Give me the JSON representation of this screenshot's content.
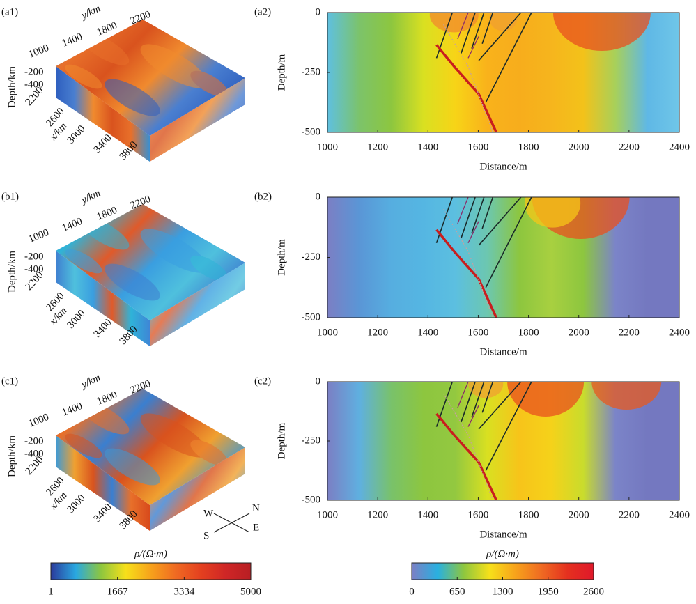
{
  "chart_data": [
    {
      "type": "block3d",
      "label": "(a1)",
      "y_label": "y/km",
      "yticks": [
        1000,
        1400,
        1800,
        2200
      ],
      "z_label": "Depth/km",
      "zticks": [
        -200,
        -400
      ],
      "x_label": "x/km",
      "xticks": [
        2200,
        2600,
        3000,
        3400,
        3800
      ],
      "colors": [
        "#3a8fd0",
        "#e8702a",
        "#d9531e",
        "#f08a2e",
        "#4a7fd0",
        "#2e5fbf"
      ]
    },
    {
      "type": "block3d",
      "label": "(b1)",
      "y_label": "y/km",
      "yticks": [
        1000,
        1400,
        1800,
        2200
      ],
      "z_label": "Depth/km",
      "zticks": [
        -200,
        -400
      ],
      "x_label": "x/km",
      "xticks": [
        2200,
        2600,
        3000,
        3400,
        3800
      ],
      "colors": [
        "#3f86d6",
        "#2fb3d8",
        "#e05a2a",
        "#3a9ee0",
        "#4fc0dd",
        "#3f7fd0"
      ]
    },
    {
      "type": "block3d",
      "label": "(c1)",
      "y_label": "y/km",
      "yticks": [
        1000,
        1400,
        1800,
        2200
      ],
      "z_label": "Depth/km",
      "zticks": [
        -200,
        -400
      ],
      "x_label": "x/km",
      "xticks": [
        2200,
        2600,
        3000,
        3400,
        3800
      ],
      "colors": [
        "#d84a1c",
        "#e8702a",
        "#3a7fd0",
        "#d9531e",
        "#f0a030",
        "#3c9ad8"
      ]
    },
    {
      "type": "section",
      "label": "(a2)",
      "xlabel": "Distance/m",
      "ylabel": "Depth/m",
      "xlim": [
        1000,
        2400
      ],
      "ylim": [
        -500,
        0
      ],
      "xticks": [
        1000,
        1200,
        1400,
        1600,
        1800,
        2000,
        2200,
        2400
      ],
      "yticks": [
        0,
        -250,
        -500
      ],
      "colors": [
        "#5fc0e0",
        "#7cc36a",
        "#8dc63f",
        "#d9e021",
        "#f7d417",
        "#f9b21b",
        "#f7ad1c",
        "#f6b51d",
        "#f3c21a",
        "#a8d05a",
        "#5fb8e6",
        "#6fc6e8"
      ]
    },
    {
      "type": "section",
      "label": "(b2)",
      "xlabel": "Distance/m",
      "ylabel": "Depth/m",
      "xlim": [
        1000,
        2400
      ],
      "ylim": [
        -500,
        0
      ],
      "xticks": [
        1000,
        1200,
        1400,
        1600,
        1800,
        2000,
        2200,
        2400
      ],
      "yticks": [
        0,
        -250,
        -500
      ],
      "colors": [
        "#7b7fc4",
        "#5a96d6",
        "#56aee0",
        "#55b6e2",
        "#5cbfe0",
        "#6cc7b0",
        "#8dc63f",
        "#a8d040",
        "#8dc63f",
        "#7b84c8",
        "#7478c0",
        "#7478c0"
      ]
    },
    {
      "type": "section",
      "label": "(c2)",
      "xlabel": "Distance/m",
      "ylabel": "Depth/m",
      "xlim": [
        1000,
        2400
      ],
      "ylim": [
        -500,
        0
      ],
      "xticks": [
        1000,
        1200,
        1400,
        1600,
        1800,
        2000,
        2200,
        2400
      ],
      "yticks": [
        0,
        -250,
        -500
      ],
      "colors": [
        "#7b7fc4",
        "#5fb0e0",
        "#79c26a",
        "#8dc63f",
        "#93c840",
        "#d9e021",
        "#f7c41a",
        "#f5d21a",
        "#c9dc2c",
        "#7b84c8",
        "#7478c0",
        "#7478c0"
      ]
    },
    {
      "type": "colorbar",
      "label": "ρ/(Ω·m)",
      "lim": [
        1,
        5000
      ],
      "ticks": [
        1,
        1667,
        3334,
        5000
      ],
      "colors": [
        "#2b3a9c",
        "#29a8e0",
        "#8dc63f",
        "#f7e01a",
        "#f7a21b",
        "#ef6a22",
        "#e4401f",
        "#cf2626",
        "#b81e23"
      ]
    },
    {
      "type": "colorbar",
      "label": "ρ/(Ω·m)",
      "lim": [
        0,
        2600
      ],
      "ticks": [
        0,
        650,
        1300,
        1950,
        2600
      ],
      "colors": [
        "#7b7fc4",
        "#29b0e0",
        "#8dc63f",
        "#f7e01a",
        "#f7a21b",
        "#ef6a22",
        "#e4301f",
        "#e0182a"
      ]
    }
  ],
  "compass": [
    "W",
    "N",
    "S",
    "E"
  ]
}
